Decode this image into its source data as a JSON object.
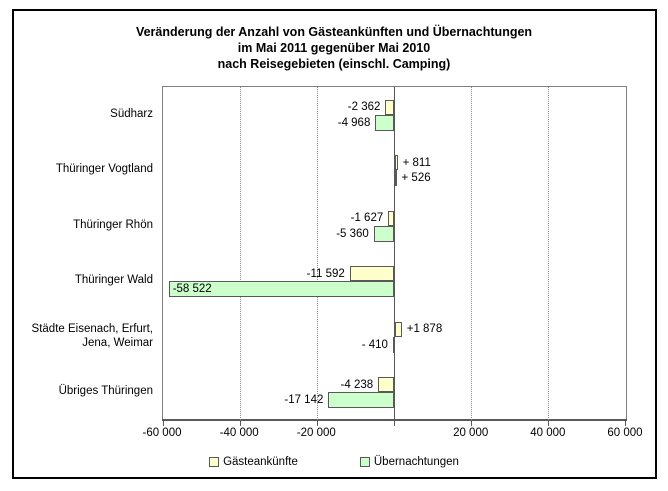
{
  "title": {
    "line1": "Veränderung der Anzahl von Gästeankünften und Übernachtungen",
    "line2": "im Mai 2011 gegenüber Mai 2010",
    "line3": "nach Reisegebieten (einschl. Camping)"
  },
  "chart_data": {
    "type": "bar",
    "orientation": "horizontal",
    "categories": [
      {
        "lines": [
          "Südharz"
        ]
      },
      {
        "lines": [
          "Thüringer Vogtland"
        ]
      },
      {
        "lines": [
          "Thüringer Rhön"
        ]
      },
      {
        "lines": [
          "Thüringer Wald"
        ]
      },
      {
        "lines": [
          "Städte Eisenach, Erfurt,",
          "Jena, Weimar"
        ]
      },
      {
        "lines": [
          "Übriges Thüringen"
        ]
      }
    ],
    "series": [
      {
        "name": "Gästeankünfte",
        "color": "#FFFFCC",
        "values": [
          -2362,
          811,
          -1627,
          -11592,
          1878,
          -4238
        ],
        "labels": [
          "-2 362",
          "+ 811",
          "-1 627",
          "-11 592",
          "+1 878",
          "-4 238"
        ]
      },
      {
        "name": "Übernachtungen",
        "color": "#CCFFCC",
        "values": [
          -4968,
          526,
          -5360,
          -58522,
          -410,
          -17142
        ],
        "labels": [
          "-4 968",
          "+ 526",
          "-5 360",
          "-58 522",
          "- 410",
          "-17 142"
        ]
      }
    ],
    "x_axis": {
      "min": -60000,
      "max": 60000,
      "ticks": [
        {
          "value": -60000,
          "label": "-60 000"
        },
        {
          "value": -40000,
          "label": "-40 000"
        },
        {
          "value": -20000,
          "label": "-20 000"
        },
        {
          "value": 0,
          "label": ""
        },
        {
          "value": 20000,
          "label": "20 000"
        },
        {
          "value": 40000,
          "label": "40 000"
        },
        {
          "value": 60000,
          "label": "60 000"
        }
      ]
    },
    "legend_position": "bottom",
    "grid": "vertical-dotted",
    "bar_border_color": "#595959"
  }
}
